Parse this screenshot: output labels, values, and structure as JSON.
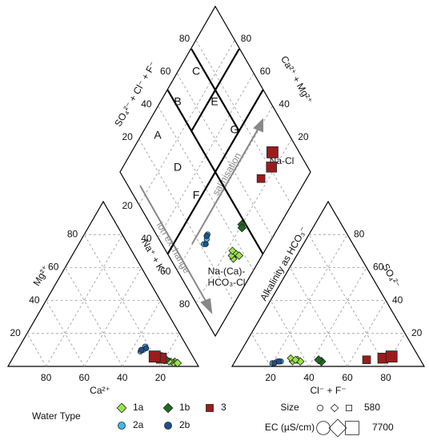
{
  "chart_data": {
    "type": "piper",
    "ticks": [
      20,
      40,
      60,
      80
    ],
    "axis_labels": {
      "cation_mg": "Mg²⁺",
      "cation_ca": "Ca²⁺",
      "anion_so4": "SO₄²⁻",
      "anion_cl": "Cl⁻ + F⁻",
      "diamond_anion": "SO₄²⁻ + Cl⁻ + F⁻",
      "diamond_cation": "Ca²⁺ + Mg²⁺",
      "diamond_na": "Na⁺ + K⁺",
      "diamond_alk": "Alkalinity as HCO₃⁻"
    },
    "zones": [
      "A",
      "B",
      "C",
      "D",
      "E",
      "F",
      "G"
    ],
    "annotations": {
      "ion_exchange": "ion exchange",
      "salinisation": "salinisation",
      "na_cl": "Na-Cl",
      "na_ca_1": "Na-(Ca)-",
      "na_ca_2": "HCO₃-Cl"
    },
    "legend_title": "Water Type",
    "size_legend": {
      "title": "Size",
      "subtitle": "EC (µS/cm)",
      "values": [
        580,
        7700
      ]
    },
    "series": [
      {
        "name": "1a",
        "color": "#9be34a",
        "marker": "diamond",
        "ca": [
          11,
          12,
          13,
          10,
          14
        ],
        "mg": [
          3,
          2,
          3,
          2,
          3
        ],
        "cl": [
          30,
          32,
          28,
          34,
          31
        ],
        "so4": [
          3,
          4,
          5,
          3,
          4
        ],
        "ec": [
          1200,
          1500,
          1000,
          1800,
          1400
        ]
      },
      {
        "name": "1b",
        "color": "#1f6b1f",
        "marker": "diamond",
        "ca": [
          16,
          15
        ],
        "mg": [
          4,
          4
        ],
        "cl": [
          45,
          43
        ],
        "so4": [
          3,
          4
        ],
        "ec": [
          2500,
          2200
        ]
      },
      {
        "name": "3",
        "color": "#9b1c1c",
        "marker": "square",
        "ca": [
          18,
          17,
          20
        ],
        "mg": [
          6,
          5,
          6
        ],
        "cl": [
          68,
          76,
          80
        ],
        "so4": [
          4,
          5,
          6
        ],
        "ec": [
          4000,
          6500,
          7700
        ]
      },
      {
        "name": "2a",
        "color": "#3fb8ee",
        "marker": "circle",
        "ca": [
          24,
          22,
          26
        ],
        "mg": [
          10,
          12,
          9
        ],
        "cl": [
          22,
          20,
          24
        ],
        "so4": [
          3,
          2,
          3
        ],
        "ec": [
          900,
          1100,
          800
        ]
      },
      {
        "name": "2b",
        "color": "#1f4f8f",
        "marker": "circle",
        "ca": [
          22,
          25
        ],
        "mg": [
          11,
          10
        ],
        "cl": [
          21,
          23
        ],
        "so4": [
          2,
          3
        ],
        "ec": [
          1000,
          1300
        ]
      }
    ]
  }
}
